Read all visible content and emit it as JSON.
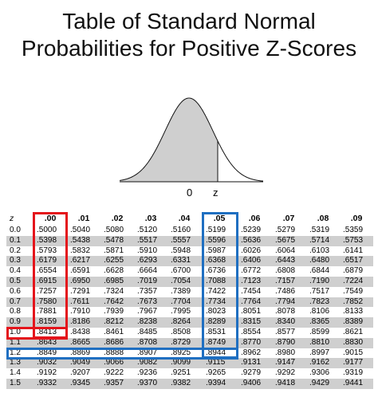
{
  "title": {
    "line1": "Table of Standard Normal",
    "line2": "Probabilities for Positive Z-Scores"
  },
  "curve": {
    "label_mean": "0",
    "label_z": "z",
    "shade_color": "#cfcfcf"
  },
  "table": {
    "corner": "z",
    "columns": [
      ".00",
      ".01",
      ".02",
      ".03",
      ".04",
      ".05",
      ".06",
      ".07",
      ".08",
      ".09"
    ],
    "rows": [
      {
        "z": "0.0",
        "v": [
          ".5000",
          ".5040",
          ".5080",
          ".5120",
          ".5160",
          ".5199",
          ".5239",
          ".5279",
          ".5319",
          ".5359"
        ]
      },
      {
        "z": "0.1",
        "v": [
          ".5398",
          ".5438",
          ".5478",
          ".5517",
          ".5557",
          ".5596",
          ".5636",
          ".5675",
          ".5714",
          ".5753"
        ]
      },
      {
        "z": "0.2",
        "v": [
          ".5793",
          ".5832",
          ".5871",
          ".5910",
          ".5948",
          ".5987",
          ".6026",
          ".6064",
          ".6103",
          ".6141"
        ]
      },
      {
        "z": "0.3",
        "v": [
          ".6179",
          ".6217",
          ".6255",
          ".6293",
          ".6331",
          ".6368",
          ".6406",
          ".6443",
          ".6480",
          ".6517"
        ]
      },
      {
        "z": "0.4",
        "v": [
          ".6554",
          ".6591",
          ".6628",
          ".6664",
          ".6700",
          ".6736",
          ".6772",
          ".6808",
          ".6844",
          ".6879"
        ]
      },
      {
        "z": "0.5",
        "v": [
          ".6915",
          ".6950",
          ".6985",
          ".7019",
          ".7054",
          ".7088",
          ".7123",
          ".7157",
          ".7190",
          ".7224"
        ]
      },
      {
        "z": "0.6",
        "v": [
          ".7257",
          ".7291",
          ".7324",
          ".7357",
          ".7389",
          ".7422",
          ".7454",
          ".7486",
          ".7517",
          ".7549"
        ]
      },
      {
        "z": "0.7",
        "v": [
          ".7580",
          ".7611",
          ".7642",
          ".7673",
          ".7704",
          ".7734",
          ".7764",
          ".7794",
          ".7823",
          ".7852"
        ]
      },
      {
        "z": "0.8",
        "v": [
          ".7881",
          ".7910",
          ".7939",
          ".7967",
          ".7995",
          ".8023",
          ".8051",
          ".8078",
          ".8106",
          ".8133"
        ]
      },
      {
        "z": "0.9",
        "v": [
          ".8159",
          ".8186",
          ".8212",
          ".8238",
          ".8264",
          ".8289",
          ".8315",
          ".8340",
          ".8365",
          ".8389"
        ]
      },
      {
        "z": "1.0",
        "v": [
          ".8413",
          ".8438",
          ".8461",
          ".8485",
          ".8508",
          ".8531",
          ".8554",
          ".8577",
          ".8599",
          ".8621"
        ]
      },
      {
        "z": "1.1",
        "v": [
          ".8643",
          ".8665",
          ".8686",
          ".8708",
          ".8729",
          ".8749",
          ".8770",
          ".8790",
          ".8810",
          ".8830"
        ]
      },
      {
        "z": "1.2",
        "v": [
          ".8849",
          ".8869",
          ".8888",
          ".8907",
          ".8925",
          ".8944",
          ".8962",
          ".8980",
          ".8997",
          ".9015"
        ]
      },
      {
        "z": "1.3",
        "v": [
          ".9032",
          ".9049",
          ".9066",
          ".9082",
          ".9099",
          ".9115",
          ".9131",
          ".9147",
          ".9162",
          ".9177"
        ]
      },
      {
        "z": "1.4",
        "v": [
          ".9192",
          ".9207",
          ".9222",
          ".9236",
          ".9251",
          ".9265",
          ".9279",
          ".9292",
          ".9306",
          ".9319"
        ]
      },
      {
        "z": "1.5",
        "v": [
          ".9332",
          ".9345",
          ".9357",
          ".9370",
          ".9382",
          ".9394",
          ".9406",
          ".9418",
          ".9429",
          ".9441"
        ]
      }
    ]
  },
  "highlights": {
    "red_column": ".00",
    "red_row": "1.0",
    "blue_column": ".05",
    "blue_row": "1.2",
    "red_color": "#e4141b",
    "blue_color": "#1f6fc1"
  }
}
